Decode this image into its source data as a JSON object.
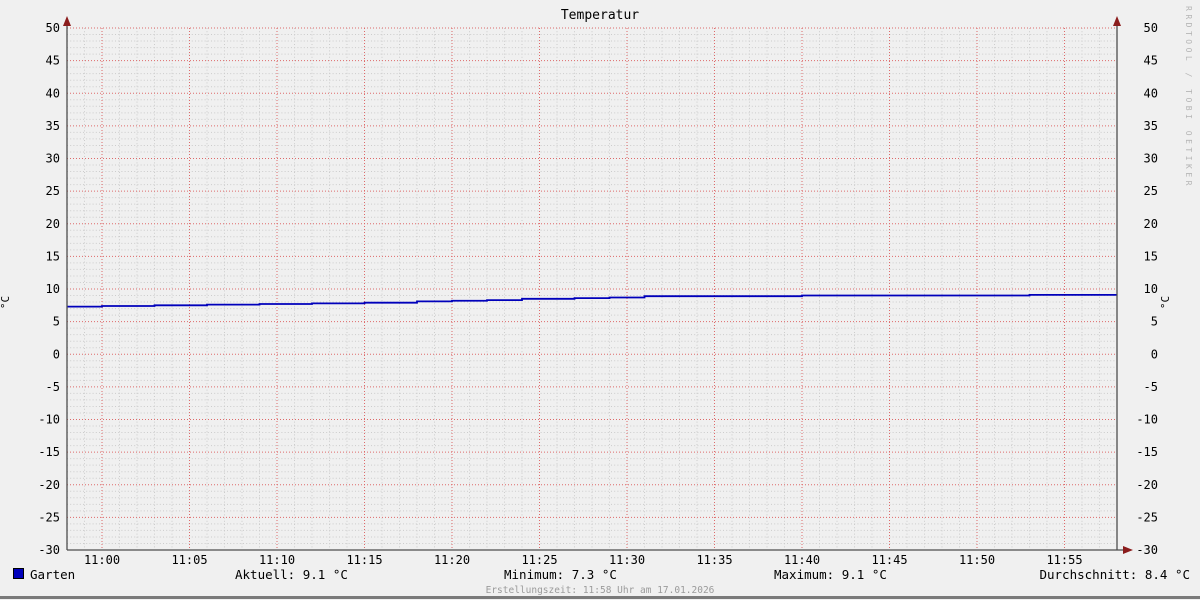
{
  "chart": {
    "title": "Temperatur",
    "y_unit": "°C",
    "watermark": "RRDTOOL / TOBI OETIKER"
  },
  "legend": {
    "label": "Garten",
    "color": "#0000bb"
  },
  "stats_row": {
    "aktuell": "Aktuell: 9.1 °C",
    "minimum": "Minimum: 7.3 °C",
    "maximum": "Maximum: 9.1 °C",
    "durchschnitt": "Durchschnitt: 8.4 °C"
  },
  "footer": {
    "creation_time": "Erstellungszeit: 11:58 Uhr am 17.01.2026"
  },
  "chart_data": {
    "type": "line",
    "title": "Temperatur",
    "xlabel": "",
    "ylabel": "°C",
    "ylim": [
      -30,
      50
    ],
    "y_tick_step": 5,
    "y_minor_step": 1,
    "x_start": "10:58",
    "x_end": "11:58",
    "x_tick_labels": [
      "11:00",
      "11:05",
      "11:10",
      "11:15",
      "11:20",
      "11:25",
      "11:30",
      "11:35",
      "11:40",
      "11:45",
      "11:50",
      "11:55"
    ],
    "x_minor_step_minutes": 1,
    "grid": true,
    "legend_position": "bottom-left",
    "series": [
      {
        "name": "Garten",
        "color": "#0000bb",
        "step": true,
        "points": [
          [
            "10:58",
            7.3
          ],
          [
            "11:00",
            7.4
          ],
          [
            "11:03",
            7.5
          ],
          [
            "11:06",
            7.6
          ],
          [
            "11:09",
            7.7
          ],
          [
            "11:12",
            7.8
          ],
          [
            "11:15",
            7.9
          ],
          [
            "11:18",
            8.1
          ],
          [
            "11:20",
            8.2
          ],
          [
            "11:22",
            8.3
          ],
          [
            "11:24",
            8.5
          ],
          [
            "11:27",
            8.6
          ],
          [
            "11:29",
            8.7
          ],
          [
            "11:31",
            8.9
          ],
          [
            "11:40",
            9.0
          ],
          [
            "11:53",
            9.1
          ],
          [
            "11:58",
            9.1
          ]
        ]
      }
    ],
    "stats": {
      "aktuell": 9.1,
      "minimum": 7.3,
      "maximum": 9.1,
      "durchschnitt": 8.4
    },
    "colors": {
      "background": "#f0f0f0",
      "canvas": "#f0f0f0",
      "major_grid": "#dd6a6a",
      "minor_grid": "#cccccc",
      "axis": "#4d4d4d",
      "arrow": "#8b1c1c",
      "text": "#000000"
    }
  }
}
